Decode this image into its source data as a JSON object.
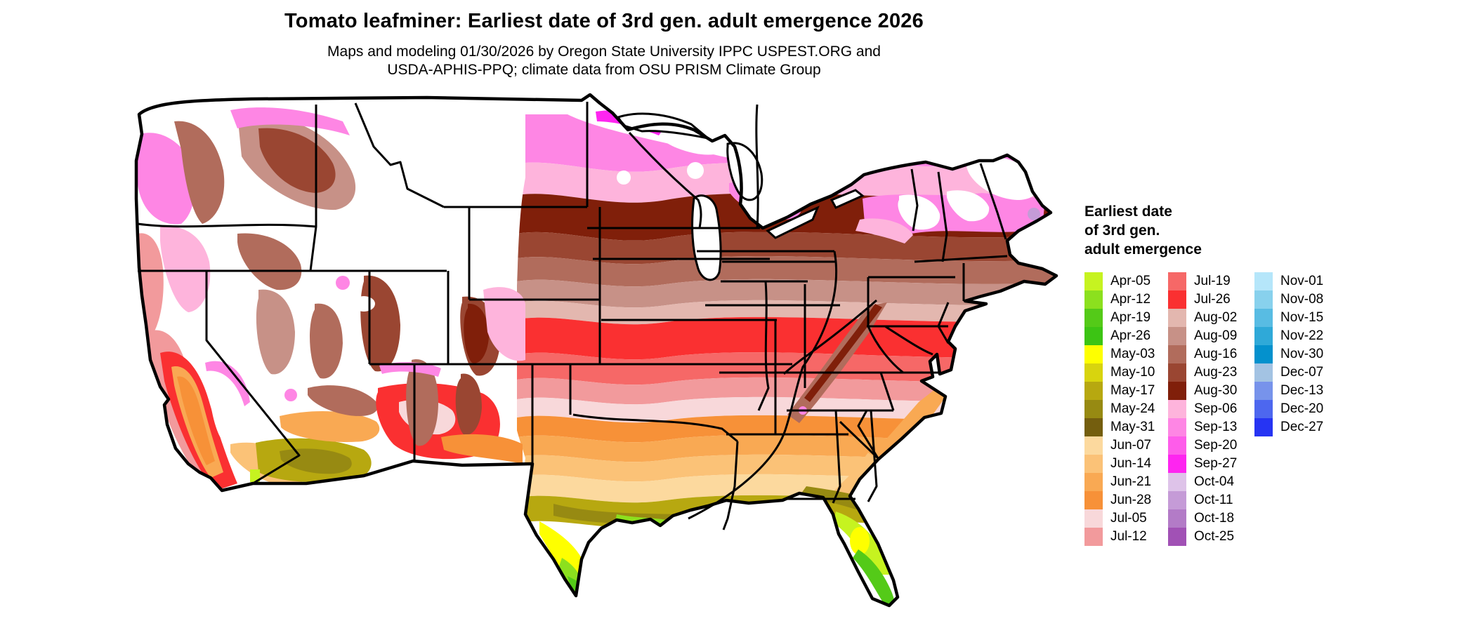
{
  "title": "Tomato leafminer: Earliest date of 3rd gen. adult emergence 2026",
  "subtitle": {
    "line1": "Maps and modeling 01/30/2026 by Oregon State University IPPC USPEST.ORG and",
    "line2": "USDA-APHIS-PPQ; climate data from OSU PRISM Climate Group"
  },
  "legend": {
    "title_line1": "Earliest date",
    "title_line2": "of 3rd gen.",
    "title_line3": "adult emergence",
    "columns": [
      {
        "entries": [
          {
            "label": "Apr-05",
            "color": "#c6f320"
          },
          {
            "label": "Apr-12",
            "color": "#8ce01e"
          },
          {
            "label": "Apr-19",
            "color": "#54ca18"
          },
          {
            "label": "Apr-26",
            "color": "#3cc414"
          },
          {
            "label": "May-03",
            "color": "#feff00"
          },
          {
            "label": "May-10",
            "color": "#d8d40e"
          },
          {
            "label": "May-17",
            "color": "#b7a810"
          },
          {
            "label": "May-24",
            "color": "#978a12"
          },
          {
            "label": "May-31",
            "color": "#745e0e"
          },
          {
            "label": "Jun-07",
            "color": "#fcd99e"
          },
          {
            "label": "Jun-14",
            "color": "#fbc277"
          },
          {
            "label": "Jun-21",
            "color": "#f9a953"
          },
          {
            "label": "Jun-28",
            "color": "#f79138"
          },
          {
            "label": "Jul-05",
            "color": "#f8d8da"
          },
          {
            "label": "Jul-12",
            "color": "#f29a9c"
          }
        ]
      },
      {
        "entries": [
          {
            "label": "Jul-19",
            "color": "#f66867"
          },
          {
            "label": "Jul-26",
            "color": "#fa3031"
          },
          {
            "label": "Aug-02",
            "color": "#e3b7af"
          },
          {
            "label": "Aug-09",
            "color": "#c79187"
          },
          {
            "label": "Aug-16",
            "color": "#b16c5c"
          },
          {
            "label": "Aug-23",
            "color": "#9a4632"
          },
          {
            "label": "Aug-30",
            "color": "#801f0a"
          },
          {
            "label": "Sep-06",
            "color": "#feb4dc"
          },
          {
            "label": "Sep-13",
            "color": "#fe86e4"
          },
          {
            "label": "Sep-20",
            "color": "#fe5cea"
          },
          {
            "label": "Sep-27",
            "color": "#fe25f0"
          },
          {
            "label": "Oct-04",
            "color": "#dec3e9"
          },
          {
            "label": "Oct-11",
            "color": "#c59bd7"
          },
          {
            "label": "Oct-18",
            "color": "#b37bc7"
          },
          {
            "label": "Oct-25",
            "color": "#a151b5"
          }
        ]
      },
      {
        "entries": [
          {
            "label": "Nov-01",
            "color": "#b5e6fa"
          },
          {
            "label": "Nov-08",
            "color": "#88d1ed"
          },
          {
            "label": "Nov-15",
            "color": "#58bce3"
          },
          {
            "label": "Nov-22",
            "color": "#2fa9d8"
          },
          {
            "label": "Nov-30",
            "color": "#0491cd"
          },
          {
            "label": "Dec-07",
            "color": "#a3c3e3"
          },
          {
            "label": "Dec-13",
            "color": "#7793eb"
          },
          {
            "label": "Dec-20",
            "color": "#4d67ef"
          },
          {
            "label": "Dec-27",
            "color": "#2634f3"
          }
        ]
      }
    ]
  },
  "map": {
    "region": "Continental United States choropleth raster; white = no 3rd generation emergence; state borders in black",
    "fills": {
      "none": "#ffffff",
      "apr05": "#c6f320",
      "apr12": "#8ce01e",
      "apr19": "#54ca18",
      "may03": "#feff00",
      "may17": "#b7a810",
      "may24": "#978a12",
      "jun07": "#fcd99e",
      "jun14": "#fbc277",
      "jun21": "#f9a953",
      "jun28": "#f79138",
      "jul05": "#f8d8da",
      "jul12": "#f29a9c",
      "jul19": "#f66867",
      "jul26": "#fa3031",
      "aug02": "#e3b7af",
      "aug09": "#c79187",
      "aug16": "#b16c5c",
      "aug23": "#9a4632",
      "aug30": "#801f0a",
      "sep06": "#feb4dc",
      "sep13": "#fe86e4",
      "sep27": "#fe25f0",
      "oct11": "#c59bd7",
      "border": "#000000"
    }
  }
}
